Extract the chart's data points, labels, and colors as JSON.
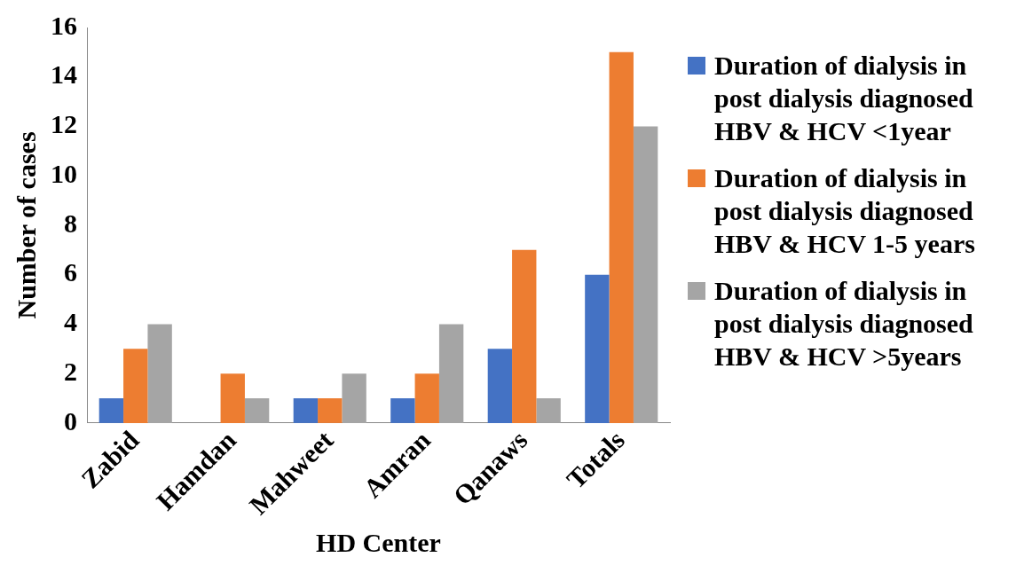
{
  "chart_data": {
    "type": "bar",
    "xlabel": "HD Center",
    "ylabel": "Number of cases",
    "categories": [
      "Zabid",
      "Hamdan",
      "Mahweet",
      "Amran",
      "Qanaws",
      "Totals"
    ],
    "series": [
      {
        "name": "Duration of dialysis in post dialysis diagnosed HBV & HCV <1year",
        "color": "#4472c4",
        "values": [
          1,
          0,
          1,
          1,
          3,
          6
        ]
      },
      {
        "name": "Duration of dialysis in post dialysis diagnosed HBV & HCV 1-5 years",
        "color": "#ed7d31",
        "values": [
          3,
          2,
          1,
          2,
          7,
          15
        ]
      },
      {
        "name": "Duration of dialysis in post dialysis diagnosed HBV & HCV >5years",
        "color": "#a5a5a5",
        "values": [
          4,
          1,
          2,
          4,
          1,
          12
        ]
      }
    ],
    "ylim": [
      0,
      16
    ],
    "yticks": [
      0,
      2,
      4,
      6,
      8,
      10,
      12,
      14,
      16
    ],
    "grid": false,
    "legend": "right"
  }
}
